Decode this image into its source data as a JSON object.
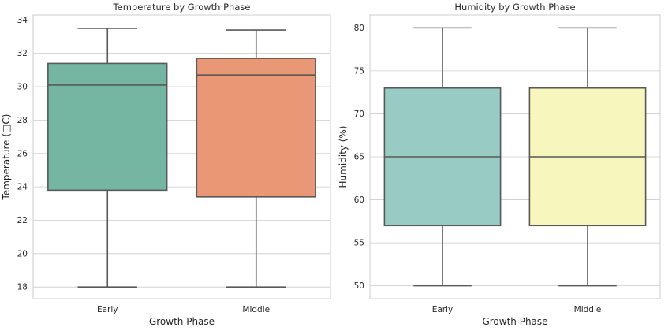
{
  "chart_data": [
    {
      "type": "box",
      "title": "Temperature by Growth Phase",
      "xlabel": "Growth Phase",
      "ylabel": "Temperature (□C)",
      "categories": [
        "Early",
        "Middle"
      ],
      "ylim": [
        17.3,
        34.3
      ],
      "yticks": [
        18,
        20,
        22,
        24,
        26,
        28,
        30,
        32,
        34
      ],
      "grid": true,
      "boxes": [
        {
          "category": "Early",
          "min": 18.0,
          "q1": 23.8,
          "median": 30.1,
          "q3": 31.4,
          "max": 33.5,
          "color": "#74b6a1"
        },
        {
          "category": "Middle",
          "min": 18.0,
          "q1": 23.4,
          "median": 30.7,
          "q3": 31.7,
          "max": 33.4,
          "color": "#e99775"
        }
      ]
    },
    {
      "type": "box",
      "title": "Humidity by Growth Phase",
      "xlabel": "Growth Phase",
      "ylabel": "Humidity (%)",
      "categories": [
        "Early",
        "Middle"
      ],
      "ylim": [
        48.5,
        81.5
      ],
      "yticks": [
        50,
        55,
        60,
        65,
        70,
        75,
        80
      ],
      "grid": true,
      "boxes": [
        {
          "category": "Early",
          "min": 50,
          "q1": 57,
          "median": 65,
          "q3": 73,
          "max": 80,
          "color": "#98cbc3"
        },
        {
          "category": "Middle",
          "min": 50,
          "q1": 57,
          "median": 65,
          "q3": 73,
          "max": 80,
          "color": "#f7f6bd"
        }
      ]
    }
  ]
}
